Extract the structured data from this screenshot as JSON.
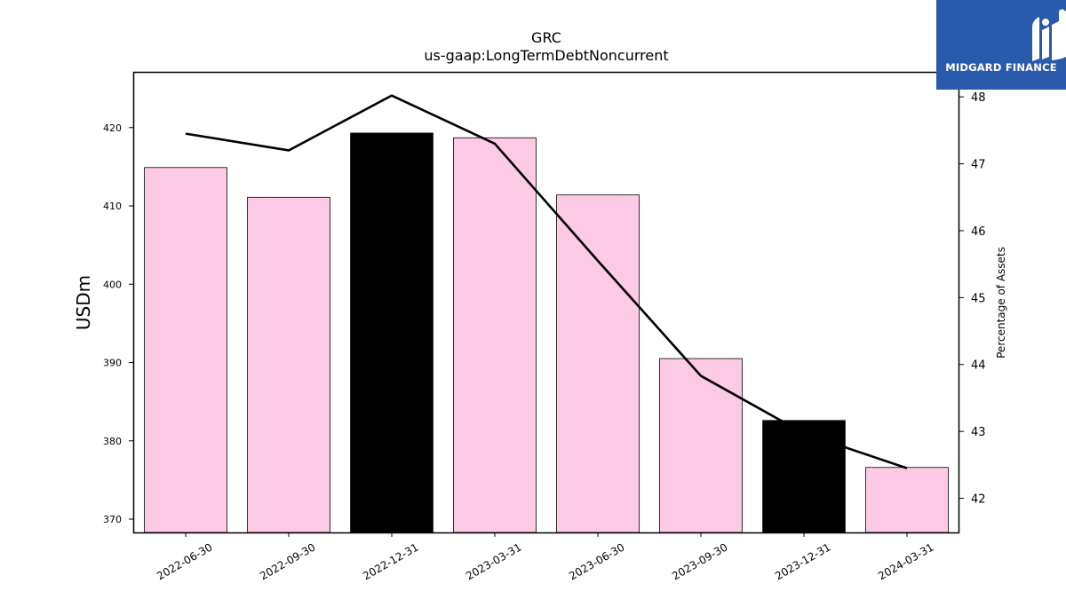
{
  "chart_data": {
    "type": "bar",
    "title": "GRC",
    "subtitle": "us-gaap:LongTermDebtNoncurrent",
    "ylabel": "USDm",
    "y2label": "Percentage of Assets",
    "categories": [
      "2022-06-30",
      "2022-09-30",
      "2022-12-31",
      "2023-03-31",
      "2023-06-30",
      "2023-09-30",
      "2023-12-31",
      "2024-03-31"
    ],
    "values": [
      414.9,
      411.1,
      419.3,
      418.7,
      411.4,
      390.5,
      382.6,
      376.6
    ],
    "bar_colors": [
      "#fccae4",
      "#fccae4",
      "#000000",
      "#fccae4",
      "#fccae4",
      "#fccae4",
      "#000000",
      "#fccae4"
    ],
    "line_values": [
      47.45,
      47.2,
      48.02,
      47.3,
      45.55,
      43.83,
      42.97,
      42.45
    ],
    "ylim": [
      368.3,
      427.0
    ],
    "y2lim": [
      41.49,
      48.36
    ],
    "yticks": [
      370,
      380,
      390,
      400,
      410,
      420
    ],
    "y2ticks": [
      42,
      43,
      44,
      45,
      46,
      47,
      48
    ],
    "grid": false,
    "line_color": "#000000"
  },
  "logo": {
    "text": "MIDGARD FINANCE",
    "background": "#2a5aab"
  }
}
